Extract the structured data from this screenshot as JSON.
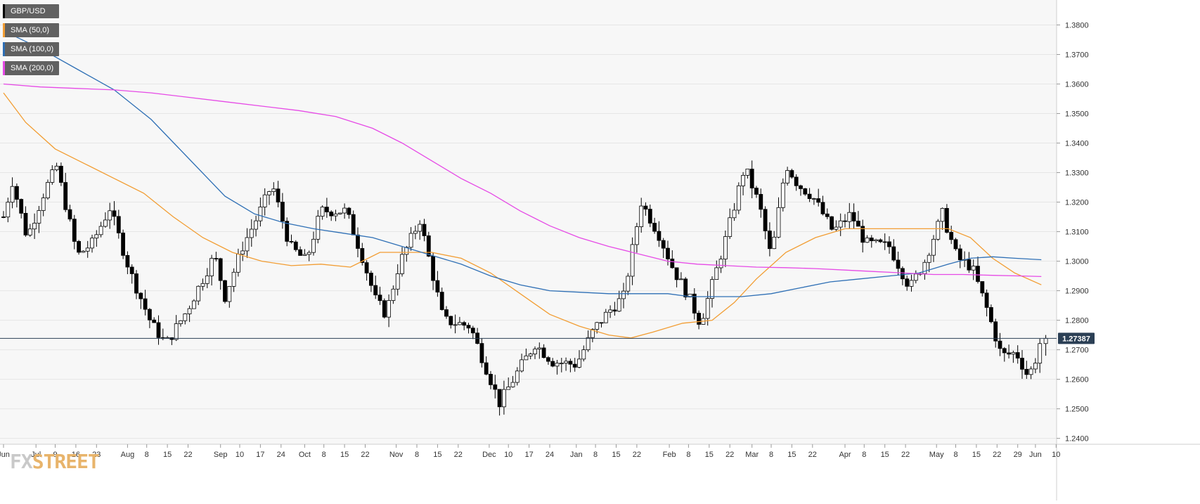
{
  "colors": {
    "plot_bg": "#f7f7f7",
    "grid": "#e6e6e6",
    "candle_up": "#ffffff",
    "candle_down": "#000000",
    "price_line": "#2b3f55",
    "price_badge": "#2b3f55"
  },
  "legend": [
    {
      "label": "GBP/USD",
      "color": "#000000"
    },
    {
      "label": "SMA (50,0)",
      "color": "#f29d33"
    },
    {
      "label": "SMA (100,0)",
      "color": "#2e6fb5"
    },
    {
      "label": "SMA (200,0)",
      "color": "#e64ae6"
    }
  ],
  "logo": {
    "part1": "FX",
    "part2": "STREET"
  },
  "chart_data": {
    "type": "candlestick",
    "title": "",
    "symbol": "GBP/USD",
    "timeframe": "daily",
    "ylim": [
      1.238,
      1.3875
    ],
    "yticks": [
      "1.3800",
      "1.3700",
      "1.3600",
      "1.3500",
      "1.3400",
      "1.3300",
      "1.3200",
      "1.3100",
      "1.3000",
      "1.2900",
      "1.2800",
      "1.2700",
      "1.2600",
      "1.2500",
      "1.2400"
    ],
    "xticks": [
      "Jun",
      "Jul",
      "9",
      "16",
      "23",
      "Aug",
      "8",
      "15",
      "22",
      "Sep",
      "10",
      "17",
      "24",
      "Oct",
      "8",
      "15",
      "22",
      "Nov",
      "8",
      "15",
      "22",
      "Dec",
      "10",
      "17",
      "24",
      "Jan",
      "8",
      "15",
      "22",
      "Feb",
      "8",
      "15",
      "22",
      "Mar",
      "8",
      "15",
      "22",
      "Apr",
      "8",
      "15",
      "22",
      "May",
      "8",
      "15",
      "22",
      "29",
      "Jun",
      "10"
    ],
    "x_label_slots": [
      0,
      22,
      35,
      49,
      63,
      84,
      97,
      111,
      125,
      147,
      160,
      174,
      188,
      204,
      217,
      231,
      245,
      266,
      280,
      294,
      308,
      329,
      342,
      356,
      370,
      388,
      401,
      415,
      429,
      451,
      464,
      478,
      492,
      507,
      520,
      534,
      548,
      570,
      583,
      597,
      611,
      632,
      645,
      659,
      673,
      687,
      699,
      713
    ],
    "current_price": "1.27387",
    "current_value": 1.27387,
    "key_points": [
      {
        "slot": 0,
        "close": 1.315
      },
      {
        "slot": 6,
        "close": 1.327
      },
      {
        "slot": 16,
        "close": 1.308
      },
      {
        "slot": 28,
        "close": 1.324
      },
      {
        "slot": 36,
        "close": 1.332
      },
      {
        "slot": 50,
        "close": 1.302
      },
      {
        "slot": 60,
        "close": 1.306
      },
      {
        "slot": 72,
        "close": 1.318
      },
      {
        "slot": 86,
        "close": 1.296
      },
      {
        "slot": 100,
        "close": 1.279
      },
      {
        "slot": 110,
        "close": 1.272
      },
      {
        "slot": 124,
        "close": 1.283
      },
      {
        "slot": 143,
        "close": 1.302
      },
      {
        "slot": 150,
        "close": 1.288
      },
      {
        "slot": 162,
        "close": 1.305
      },
      {
        "slot": 172,
        "close": 1.315
      },
      {
        "slot": 182,
        "close": 1.326
      },
      {
        "slot": 194,
        "close": 1.305
      },
      {
        "slot": 205,
        "close": 1.3
      },
      {
        "slot": 215,
        "close": 1.317
      },
      {
        "slot": 232,
        "close": 1.317
      },
      {
        "slot": 242,
        "close": 1.303
      },
      {
        "slot": 252,
        "close": 1.287
      },
      {
        "slot": 259,
        "close": 1.282
      },
      {
        "slot": 268,
        "close": 1.299
      },
      {
        "slot": 282,
        "close": 1.314
      },
      {
        "slot": 298,
        "close": 1.28
      },
      {
        "slot": 316,
        "close": 1.278
      },
      {
        "slot": 336,
        "close": 1.252
      },
      {
        "slot": 350,
        "close": 1.264
      },
      {
        "slot": 360,
        "close": 1.272
      },
      {
        "slot": 372,
        "close": 1.266
      },
      {
        "slot": 388,
        "close": 1.265
      },
      {
        "slot": 400,
        "close": 1.277
      },
      {
        "slot": 410,
        "close": 1.283
      },
      {
        "slot": 420,
        "close": 1.288
      },
      {
        "slot": 432,
        "close": 1.32
      },
      {
        "slot": 444,
        "close": 1.309
      },
      {
        "slot": 454,
        "close": 1.297
      },
      {
        "slot": 464,
        "close": 1.288
      },
      {
        "slot": 472,
        "close": 1.279
      },
      {
        "slot": 480,
        "close": 1.292
      },
      {
        "slot": 490,
        "close": 1.309
      },
      {
        "slot": 502,
        "close": 1.332
      },
      {
        "slot": 512,
        "close": 1.319
      },
      {
        "slot": 520,
        "close": 1.301
      },
      {
        "slot": 530,
        "close": 1.333
      },
      {
        "slot": 538,
        "close": 1.326
      },
      {
        "slot": 548,
        "close": 1.322
      },
      {
        "slot": 562,
        "close": 1.31
      },
      {
        "slot": 574,
        "close": 1.316
      },
      {
        "slot": 584,
        "close": 1.306
      },
      {
        "slot": 600,
        "close": 1.305
      },
      {
        "slot": 614,
        "close": 1.291
      },
      {
        "slot": 624,
        "close": 1.3
      },
      {
        "slot": 636,
        "close": 1.316
      },
      {
        "slot": 646,
        "close": 1.301
      },
      {
        "slot": 656,
        "close": 1.298
      },
      {
        "slot": 666,
        "close": 1.284
      },
      {
        "slot": 676,
        "close": 1.268
      },
      {
        "slot": 686,
        "close": 1.269
      },
      {
        "slot": 694,
        "close": 1.261
      },
      {
        "slot": 698,
        "close": 1.265
      },
      {
        "slot": 703,
        "close": 1.27387
      }
    ],
    "series": [
      {
        "name": "SMA (50,0)",
        "color": "#f29d33",
        "points": [
          [
            0,
            1.357
          ],
          [
            15,
            1.347
          ],
          [
            35,
            1.338
          ],
          [
            55,
            1.333
          ],
          [
            75,
            1.328
          ],
          [
            95,
            1.323
          ],
          [
            115,
            1.315
          ],
          [
            135,
            1.308
          ],
          [
            155,
            1.303
          ],
          [
            175,
            1.3
          ],
          [
            195,
            1.2985
          ],
          [
            215,
            1.299
          ],
          [
            235,
            1.298
          ],
          [
            255,
            1.303
          ],
          [
            270,
            1.303
          ],
          [
            290,
            1.303
          ],
          [
            310,
            1.301
          ],
          [
            330,
            1.296
          ],
          [
            350,
            1.289
          ],
          [
            370,
            1.282
          ],
          [
            390,
            1.278
          ],
          [
            410,
            1.275
          ],
          [
            425,
            1.274
          ],
          [
            440,
            1.276
          ],
          [
            460,
            1.279
          ],
          [
            480,
            1.28
          ],
          [
            495,
            1.286
          ],
          [
            510,
            1.294
          ],
          [
            530,
            1.303
          ],
          [
            550,
            1.308
          ],
          [
            570,
            1.311
          ],
          [
            590,
            1.311
          ],
          [
            610,
            1.311
          ],
          [
            625,
            1.311
          ],
          [
            640,
            1.311
          ],
          [
            655,
            1.308
          ],
          [
            670,
            1.301
          ],
          [
            685,
            1.296
          ],
          [
            703,
            1.292
          ]
        ]
      },
      {
        "name": "SMA (100,0)",
        "color": "#2e6fb5",
        "points": [
          [
            0,
            1.378
          ],
          [
            25,
            1.372
          ],
          [
            50,
            1.365
          ],
          [
            75,
            1.358
          ],
          [
            100,
            1.348
          ],
          [
            125,
            1.335
          ],
          [
            150,
            1.322
          ],
          [
            170,
            1.316
          ],
          [
            190,
            1.313
          ],
          [
            210,
            1.311
          ],
          [
            230,
            1.3095
          ],
          [
            250,
            1.308
          ],
          [
            270,
            1.305
          ],
          [
            290,
            1.302
          ],
          [
            310,
            1.299
          ],
          [
            330,
            1.295
          ],
          [
            350,
            1.292
          ],
          [
            370,
            1.29
          ],
          [
            390,
            1.2895
          ],
          [
            410,
            1.289
          ],
          [
            430,
            1.289
          ],
          [
            450,
            1.289
          ],
          [
            465,
            1.288
          ],
          [
            480,
            1.288
          ],
          [
            500,
            1.288
          ],
          [
            520,
            1.289
          ],
          [
            540,
            1.291
          ],
          [
            560,
            1.293
          ],
          [
            580,
            1.294
          ],
          [
            600,
            1.295
          ],
          [
            620,
            1.296
          ],
          [
            640,
            1.299
          ],
          [
            655,
            1.301
          ],
          [
            670,
            1.3015
          ],
          [
            685,
            1.301
          ],
          [
            703,
            1.3005
          ]
        ]
      },
      {
        "name": "SMA (200,0)",
        "color": "#e64ae6",
        "points": [
          [
            0,
            1.36
          ],
          [
            25,
            1.359
          ],
          [
            50,
            1.3585
          ],
          [
            75,
            1.358
          ],
          [
            100,
            1.357
          ],
          [
            125,
            1.3555
          ],
          [
            150,
            1.354
          ],
          [
            175,
            1.3525
          ],
          [
            200,
            1.351
          ],
          [
            225,
            1.349
          ],
          [
            250,
            1.345
          ],
          [
            270,
            1.34
          ],
          [
            290,
            1.334
          ],
          [
            310,
            1.328
          ],
          [
            330,
            1.323
          ],
          [
            350,
            1.317
          ],
          [
            370,
            1.312
          ],
          [
            390,
            1.308
          ],
          [
            410,
            1.305
          ],
          [
            430,
            1.3025
          ],
          [
            450,
            1.3
          ],
          [
            470,
            1.299
          ],
          [
            490,
            1.2985
          ],
          [
            510,
            1.298
          ],
          [
            530,
            1.2978
          ],
          [
            550,
            1.2975
          ],
          [
            570,
            1.297
          ],
          [
            590,
            1.2965
          ],
          [
            610,
            1.296
          ],
          [
            630,
            1.2955
          ],
          [
            650,
            1.2955
          ],
          [
            670,
            1.2952
          ],
          [
            690,
            1.295
          ],
          [
            703,
            1.2948
          ]
        ]
      }
    ]
  }
}
